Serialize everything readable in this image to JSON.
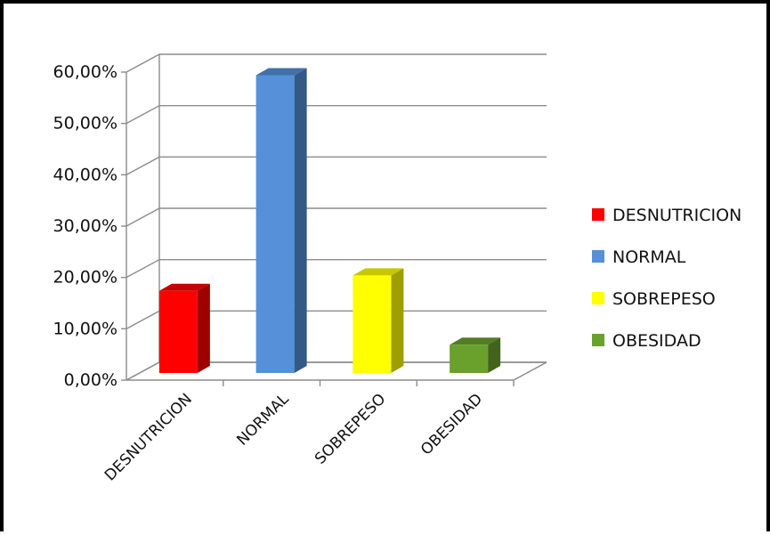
{
  "chart_data": {
    "type": "bar",
    "categories": [
      "DESNUTRICION",
      "NORMAL",
      "SOBREPESO",
      "OBESIDAD"
    ],
    "values": [
      16.0,
      58.0,
      19.0,
      5.5
    ],
    "colors": {
      "DESNUTRICION": "#ff0000",
      "NORMAL": "#5590d8",
      "SOBREPESO": "#ffff00",
      "OBESIDAD": "#6aa02c"
    },
    "ylim": [
      0,
      60
    ],
    "ytick_values": [
      0,
      10,
      20,
      30,
      40,
      50,
      60
    ],
    "ytick_labels": [
      "0,00%",
      "10,00%",
      "20,00%",
      "30,00%",
      "40,00%",
      "50,00%",
      "60,00%"
    ],
    "grid": true,
    "three_d": true,
    "legend_placement": "right",
    "legend": [
      "DESNUTRICION",
      "NORMAL",
      "SOBREPESO",
      "OBESIDAD"
    ]
  }
}
